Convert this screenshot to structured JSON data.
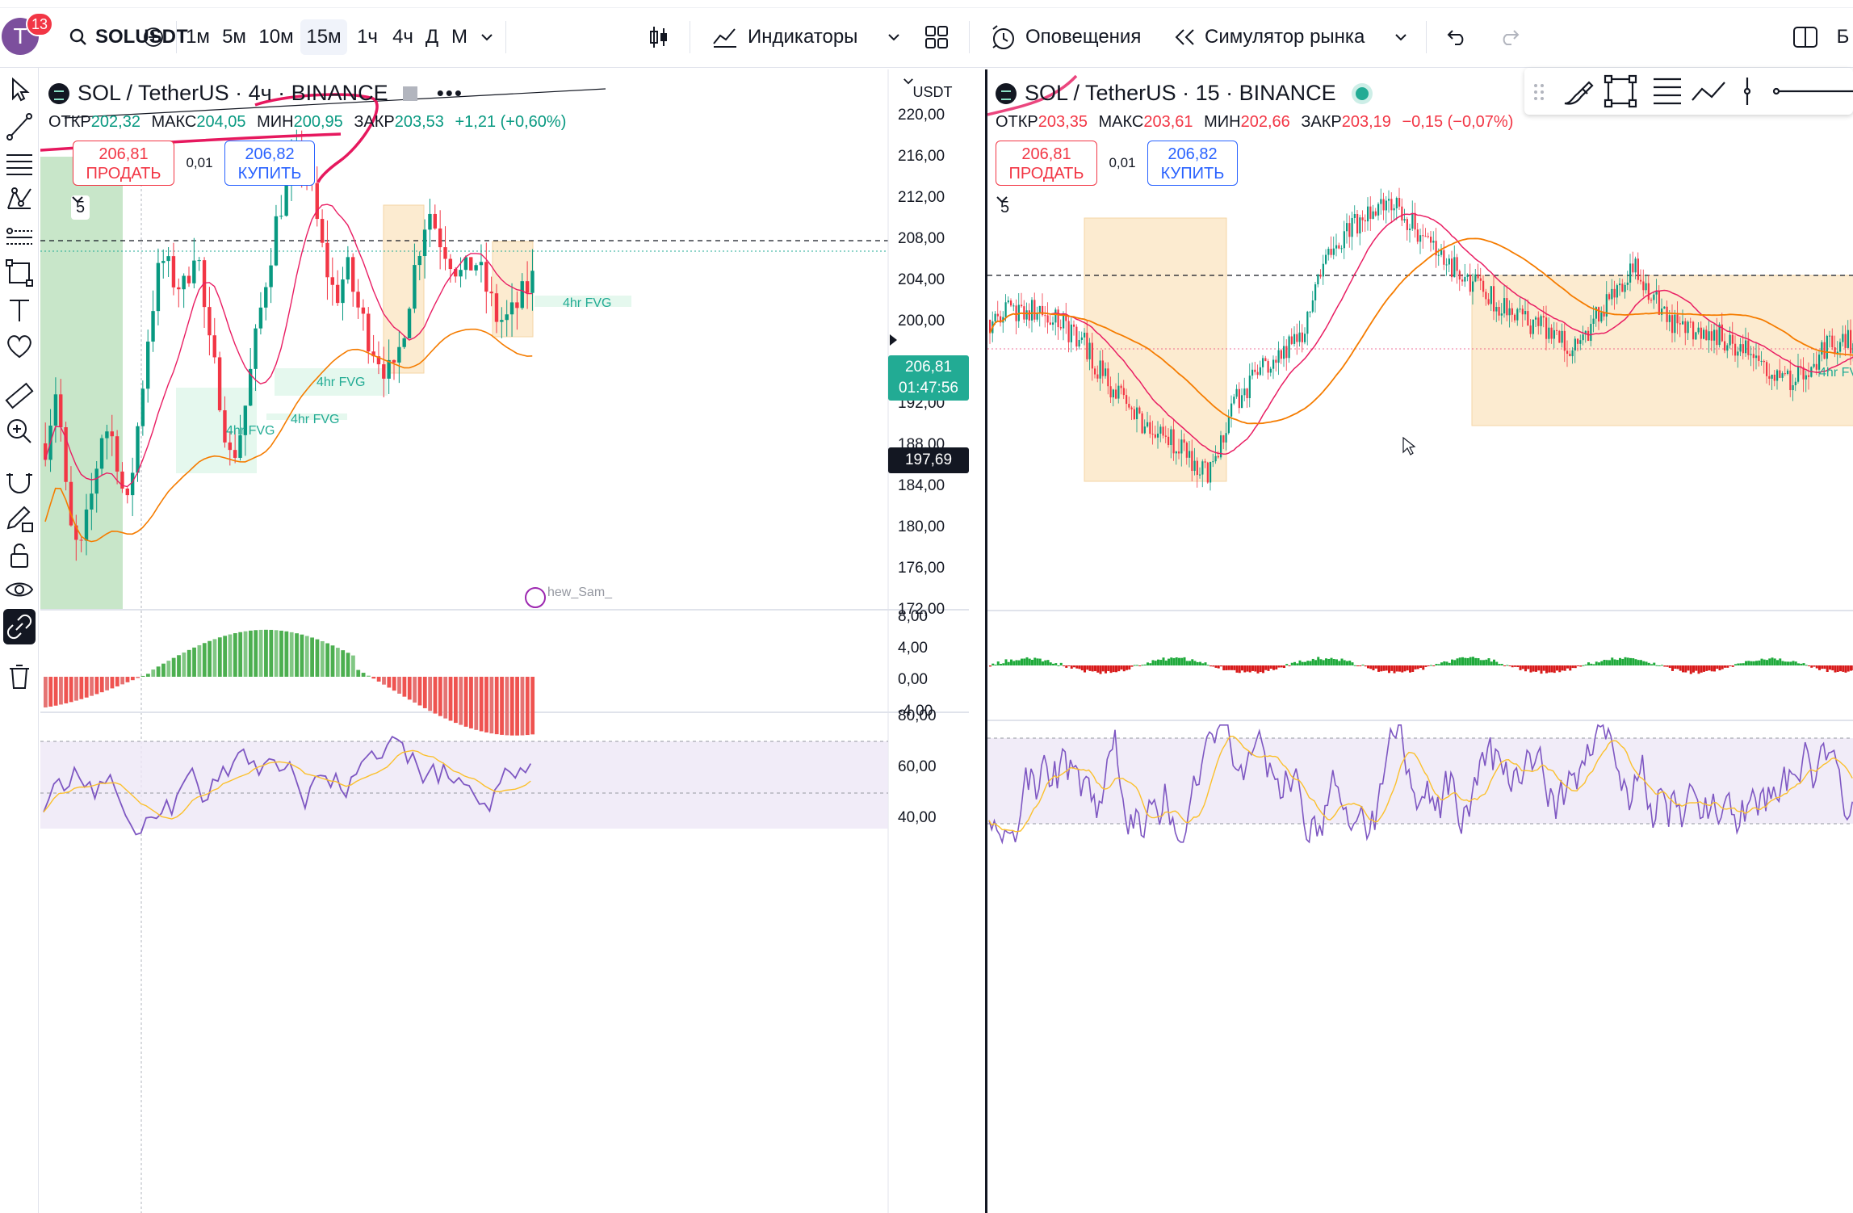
{
  "toolbar": {
    "avatar_letter": "T",
    "notifications": "13",
    "symbol": "SOLUSDT",
    "intervals": [
      "1м",
      "5м",
      "10м",
      "15м",
      "1ч",
      "4ч",
      "Д",
      "М"
    ],
    "active_interval": "15м",
    "indicators_label": "Индикаторы",
    "alerts_label": "Оповещения",
    "replay_label": "Симулятор рынка",
    "edge_text": "Б"
  },
  "left_chart": {
    "title": "SOL / TetherUS · 4ч · BINANCE",
    "ohlc": {
      "o_label": "ОТКР",
      "o": "202,32",
      "h_label": "МАКС",
      "h": "204,05",
      "l_label": "МИН",
      "l": "200,95",
      "c_label": "ЗАКР",
      "c": "203,53",
      "change": "+1,21 (+0,60%)"
    },
    "sell_price": "206,81",
    "sell_label": "ПРОДАТЬ",
    "spread": "0,01",
    "buy_price": "206,82",
    "buy_label": "КУПИТЬ",
    "collapsed_count": "5",
    "currency": "USDT",
    "price_axis": [
      "220,00",
      "216,00",
      "212,00",
      "208,00",
      "204,00",
      "200,00",
      "196,00",
      "192,00",
      "188,00",
      "184,00",
      "180,00",
      "176,00",
      "172,00"
    ],
    "last_price": "206,81",
    "countdown": "01:47:56",
    "crosshair_price": "197,69",
    "macd_axis": [
      "8,00",
      "4,00",
      "0,00",
      "-4,00"
    ],
    "rsi_axis": [
      "80,00",
      "60,00",
      "40,00"
    ],
    "fvg_labels": [
      "4hr FVG",
      "4hr FVG",
      "4hr FVG",
      "4hr FVG"
    ],
    "watermark": "hew_Sam_"
  },
  "right_chart": {
    "title": "SOL / TetherUS · 15 · BINANCE",
    "ohlc": {
      "o_label": "ОТКР",
      "o": "203,35",
      "h_label": "МАКС",
      "h": "203,61",
      "l_label": "МИН",
      "l": "202,66",
      "c_label": "ЗАКР",
      "c": "203,19",
      "change": "−0,15 (−0,07%)"
    },
    "sell_price": "206,81",
    "sell_label": "ПРОДАТЬ",
    "spread": "0,01",
    "buy_price": "206,82",
    "buy_label": "КУПИТЬ",
    "collapsed_count": "5",
    "fvg_label": "4hr FV"
  },
  "colors": {
    "up": "#089981",
    "down": "#f23645",
    "accent": "#2962ff",
    "fvg_green": "#e5f8ee",
    "zone_orange": "#fcebd0",
    "ma_red": "#e91e63",
    "ma_orange": "#f57c00",
    "rsi": "#7e57c2"
  },
  "icons": [
    "cursor-icon",
    "trendline-icon",
    "fib-icon",
    "pattern-icon",
    "prediction-icon",
    "shape-icon",
    "text-icon",
    "heart-icon",
    "ruler-icon",
    "zoom-icon",
    "magnet-icon",
    "pencil-lock-icon",
    "lock-icon",
    "eye-icon",
    "link-icon",
    "trash-icon"
  ]
}
